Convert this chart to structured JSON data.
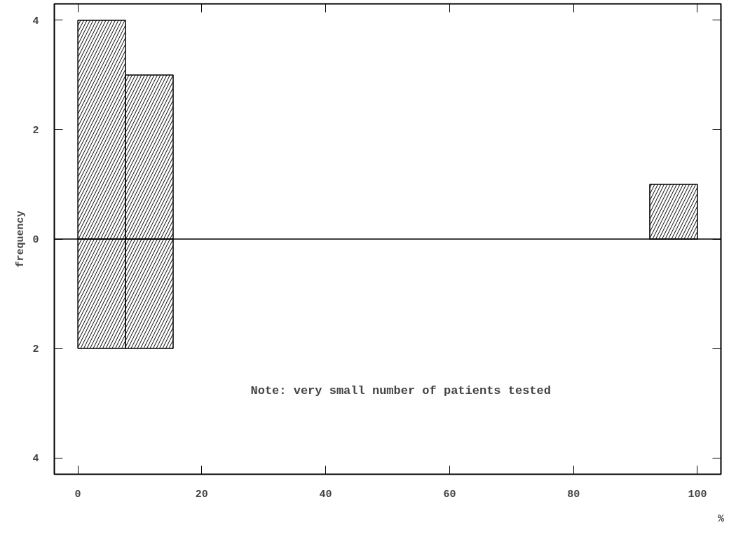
{
  "chart_data": {
    "type": "histogram",
    "xlabel": "%",
    "ylabel": "frequency",
    "bins": [
      0,
      7.69,
      15.38,
      23.08,
      30.77,
      38.46,
      46.15,
      53.85,
      61.54,
      69.23,
      76.92,
      84.62,
      92.31,
      100
    ],
    "series": [
      {
        "color": "#000000",
        "values": [
          4,
          3,
          0,
          0,
          0,
          0,
          0,
          0,
          0,
          0,
          0,
          0,
          1
        ]
      },
      {
        "color": "#000000",
        "values": [
          -2,
          -2,
          0,
          0,
          0,
          0,
          0,
          0,
          0,
          0,
          0,
          0,
          0
        ]
      }
    ],
    "xlim": [
      -3.8,
      103.8
    ],
    "ylim": [
      -4.3,
      4.3
    ],
    "xticks": [
      0,
      20,
      40,
      60,
      80,
      100
    ],
    "yticks": [
      {
        "value": -4,
        "label": "4"
      },
      {
        "value": -2,
        "label": "2"
      },
      0,
      2,
      4
    ],
    "ref_lines": [
      {
        "axis": "y",
        "value": 0,
        "label": null
      }
    ],
    "annotations": [
      "Note: very small number of patients tested"
    ],
    "grid": false
  }
}
